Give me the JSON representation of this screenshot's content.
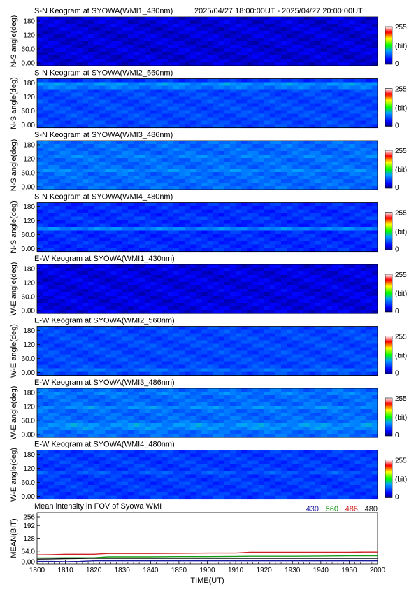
{
  "header": {
    "time_range": "2025/04/27 18:00:00UT - 2025/04/27 20:00:00UT"
  },
  "colorbar": {
    "max_label": "255",
    "unit_label": "(bit)",
    "min_label": "0"
  },
  "keograms": [
    {
      "title": "S-N Keogram at SYOWA(WMI1_430nm)",
      "ylabel": "N-S angle(deg)",
      "yticks": [
        "180",
        "120",
        "60.0",
        "0.00"
      ],
      "base_level": 0.08,
      "bands": []
    },
    {
      "title": "S-N Keogram at SYOWA(WMI2_560nm)",
      "ylabel": "N-S angle(deg)",
      "yticks": [
        "180",
        "120",
        "60.0",
        "0.00"
      ],
      "base_level": 0.22,
      "bands": [
        {
          "angle": 155,
          "width": 7,
          "level": 0.42
        },
        {
          "angle": 176,
          "width": 2,
          "level": 0.1
        }
      ]
    },
    {
      "title": "S-N Keogram at SYOWA(WMI3_486nm)",
      "ylabel": "N-S angle(deg)",
      "yticks": [
        "180",
        "120",
        "60.0",
        "0.00"
      ],
      "base_level": 0.27,
      "bands": [
        {
          "angle": 75,
          "width": 4,
          "level": 0.4
        },
        {
          "angle": 120,
          "width": 3,
          "level": 0.32
        }
      ]
    },
    {
      "title": "S-N Keogram at SYOWA(WMI4_480nm)",
      "ylabel": "N-S angle(deg)",
      "yticks": [
        "180",
        "120",
        "60.0",
        "0.00"
      ],
      "base_level": 0.18,
      "bands": [
        {
          "angle": 85,
          "width": 3,
          "level": 0.34
        },
        {
          "angle": 120,
          "width": 2,
          "level": 0.24
        }
      ]
    },
    {
      "title": "E-W Keogram at SYOWA(WMI1_430nm)",
      "ylabel": "W-E angle(deg)",
      "yticks": [
        "180",
        "120",
        "60.0",
        "0.00"
      ],
      "base_level": 0.09,
      "bands": []
    },
    {
      "title": "E-W Keogram at SYOWA(WMI2_560nm)",
      "ylabel": "W-E angle(deg)",
      "yticks": [
        "180",
        "120",
        "60.0",
        "0.00"
      ],
      "base_level": 0.22,
      "bands": [
        {
          "angle": 20,
          "width": 6,
          "level": 0.27
        }
      ]
    },
    {
      "title": "E-W Keogram at SYOWA(WMI3_486nm)",
      "ylabel": "W-E angle(deg)",
      "yticks": [
        "180",
        "120",
        "60.0",
        "0.00"
      ],
      "base_level": 0.27,
      "bands": [
        {
          "angle": 105,
          "width": 4,
          "level": 0.42
        },
        {
          "angle": 40,
          "width": 12,
          "level": 0.34
        },
        {
          "angle": 160,
          "width": 3,
          "level": 0.3
        }
      ]
    },
    {
      "title": "E-W Keogram at SYOWA(WMI4_480nm)",
      "ylabel": "W-E angle(deg)",
      "yticks": [
        "180",
        "120",
        "60.0",
        "0.00"
      ],
      "base_level": 0.2,
      "bands": [
        {
          "angle": 100,
          "width": 3,
          "level": 0.36
        },
        {
          "angle": 165,
          "width": 2,
          "level": 0.28
        }
      ]
    }
  ],
  "chart_data": {
    "type": "line",
    "title": "Mean intensity in FOV of Syowa WMI",
    "xlabel": "TIME(UT)",
    "ylabel": "MEAN(BIT)",
    "xticks": [
      "1800",
      "1810",
      "1820",
      "1830",
      "1840",
      "1850",
      "1900",
      "1910",
      "1920",
      "1930",
      "1940",
      "1950",
      "2000"
    ],
    "yticks": [
      "256",
      "192",
      "128",
      "64.0",
      "0.00"
    ],
    "xlim": [
      0,
      120
    ],
    "ylim": [
      0,
      256
    ],
    "x": [
      0,
      5,
      10,
      15,
      20,
      25,
      30,
      40,
      50,
      60,
      70,
      75,
      80,
      90,
      100,
      110,
      115,
      120
    ],
    "series": [
      {
        "name": "430",
        "color": "#1a1a9a",
        "values": [
          12,
          12,
          11,
          12,
          15,
          15,
          15,
          15,
          15,
          15,
          15,
          15,
          15,
          15,
          15,
          15,
          15,
          15
        ]
      },
      {
        "name": "560",
        "color": "#1a9a1a",
        "values": [
          30,
          30,
          31,
          31,
          31,
          35,
          35,
          35,
          36,
          36,
          37,
          38,
          38,
          38,
          39,
          40,
          40,
          40
        ]
      },
      {
        "name": "486",
        "color": "#cc2222",
        "values": [
          45,
          46,
          48,
          48,
          48,
          52,
          52,
          52,
          53,
          54,
          54,
          58,
          58,
          58,
          58,
          58,
          59,
          59
        ]
      },
      {
        "name": "480",
        "color": "#111111",
        "values": [
          24,
          25,
          26,
          27,
          28,
          28,
          28,
          28,
          28,
          28,
          28,
          28,
          28,
          28,
          28,
          28,
          28,
          28
        ]
      }
    ]
  }
}
